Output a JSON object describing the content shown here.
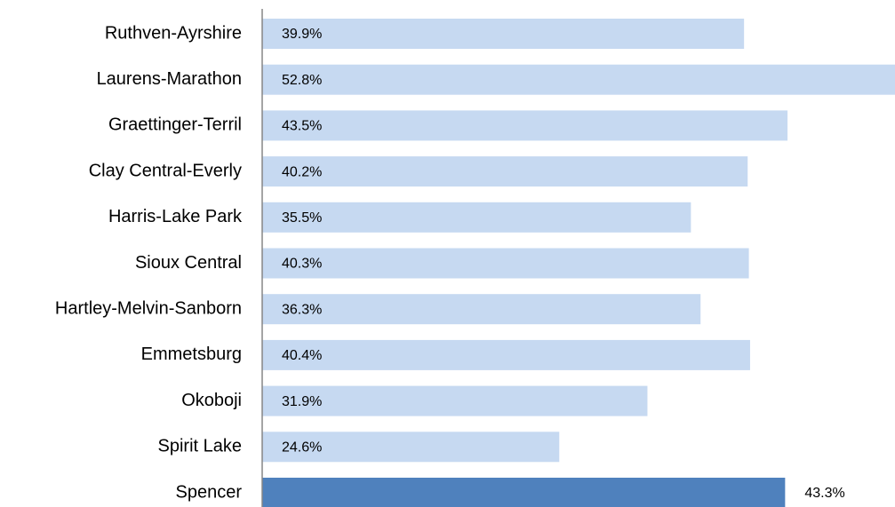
{
  "chart_data": {
    "type": "bar",
    "orientation": "horizontal",
    "categories": [
      "Ruthven-Ayrshire",
      "Laurens-Marathon",
      "Graettinger-Terril",
      "Clay Central-Everly",
      "Harris-Lake Park",
      "Sioux Central",
      "Hartley-Melvin-Sanborn",
      "Emmetsburg",
      "Okoboji",
      "Spirit Lake",
      "Spencer"
    ],
    "values": [
      39.9,
      52.8,
      43.5,
      40.2,
      35.5,
      40.3,
      36.3,
      40.4,
      31.9,
      24.6,
      43.3
    ],
    "value_labels": [
      "39.9%",
      "52.8%",
      "43.5%",
      "40.2%",
      "35.5%",
      "40.3%",
      "36.3%",
      "40.4%",
      "31.9%",
      "24.6%",
      "43.3%"
    ],
    "colors": [
      "#c6d9f1",
      "#c6d9f1",
      "#c6d9f1",
      "#c6d9f1",
      "#c6d9f1",
      "#c6d9f1",
      "#c6d9f1",
      "#c6d9f1",
      "#c6d9f1",
      "#c6d9f1",
      "#4f81bd"
    ],
    "xlim": [
      0,
      52.4
    ]
  }
}
